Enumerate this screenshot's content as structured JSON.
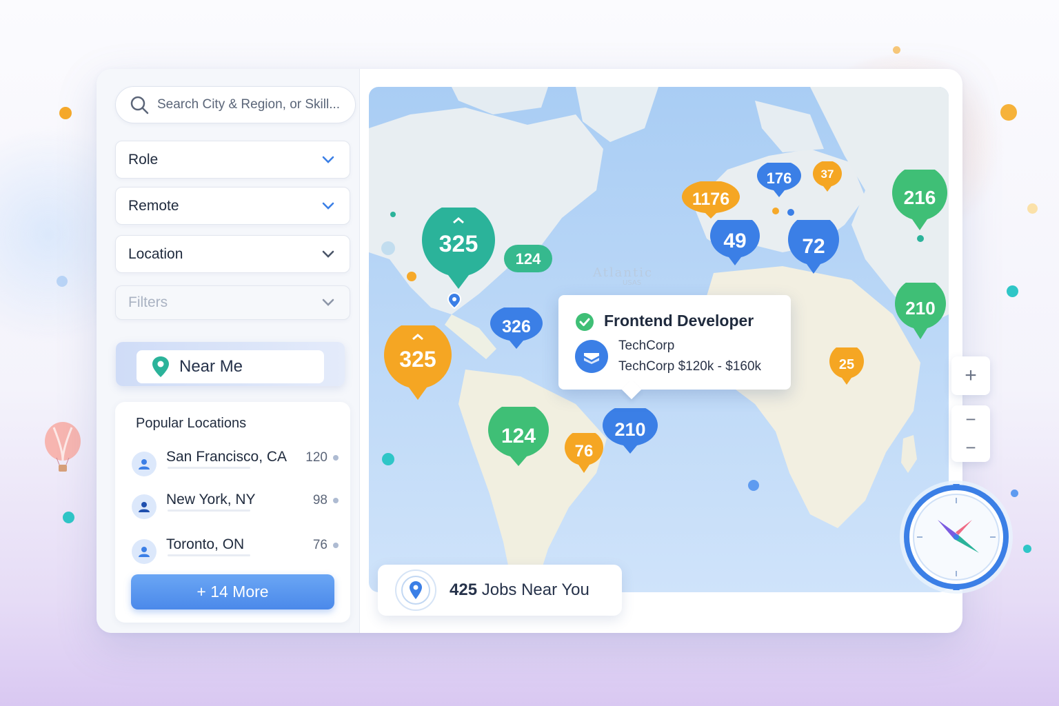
{
  "search": {
    "placeholder": "Search City & Region, or Skill..."
  },
  "filters": [
    {
      "label": "Role"
    },
    {
      "label": "Remote"
    },
    {
      "label": "Location"
    },
    {
      "label": "Filters"
    }
  ],
  "near_me": {
    "label": "Near Me"
  },
  "popular": {
    "title": "Popular Locations",
    "items": [
      {
        "name": "San Francisco, CA",
        "count": "120"
      },
      {
        "name": "New York, NY",
        "count": "98"
      },
      {
        "name": "Toronto, ON",
        "count": "76"
      }
    ],
    "more_label": "+ 14 More"
  },
  "map": {
    "ocean_label": "Atlantic",
    "ocean_sublabel": "USAS",
    "clusters": [
      {
        "id": "c325a",
        "label": "325",
        "color": "#2bb39a"
      },
      {
        "id": "c124a",
        "label": "124",
        "color": "#36b98e"
      },
      {
        "id": "c325b",
        "label": "325",
        "color": "#f5a623"
      },
      {
        "id": "c326",
        "label": "326",
        "color": "#3b7fe6"
      },
      {
        "id": "c124b",
        "label": "124",
        "color": "#3fbf76"
      },
      {
        "id": "c76",
        "label": "76",
        "color": "#f5a623"
      },
      {
        "id": "c210a",
        "label": "210",
        "color": "#3b7fe6"
      },
      {
        "id": "c1176",
        "label": "1176",
        "color": "#f5a623"
      },
      {
        "id": "c176",
        "label": "176",
        "color": "#3b7fe6"
      },
      {
        "id": "c37",
        "label": "37",
        "color": "#f5a623"
      },
      {
        "id": "c49",
        "label": "49",
        "color": "#3b7fe6"
      },
      {
        "id": "c72",
        "label": "72",
        "color": "#3b7fe6"
      },
      {
        "id": "c216",
        "label": "216",
        "color": "#3fbf76"
      },
      {
        "id": "c210b",
        "label": "210",
        "color": "#3fbf76"
      },
      {
        "id": "c25",
        "label": "25",
        "color": "#f5a623"
      }
    ]
  },
  "tooltip": {
    "title": "Frontend Developer",
    "company": "TechCorp",
    "salary_line": "TechCorp  $120k - $160k"
  },
  "jobs_near": {
    "count": "425",
    "label": "Jobs Near You"
  },
  "zoom": {
    "in": "+",
    "out": "−"
  },
  "colors": {
    "accent": "#4b89ea",
    "teal": "#2bb39a",
    "orange": "#f5a623",
    "green": "#3fbf76"
  }
}
